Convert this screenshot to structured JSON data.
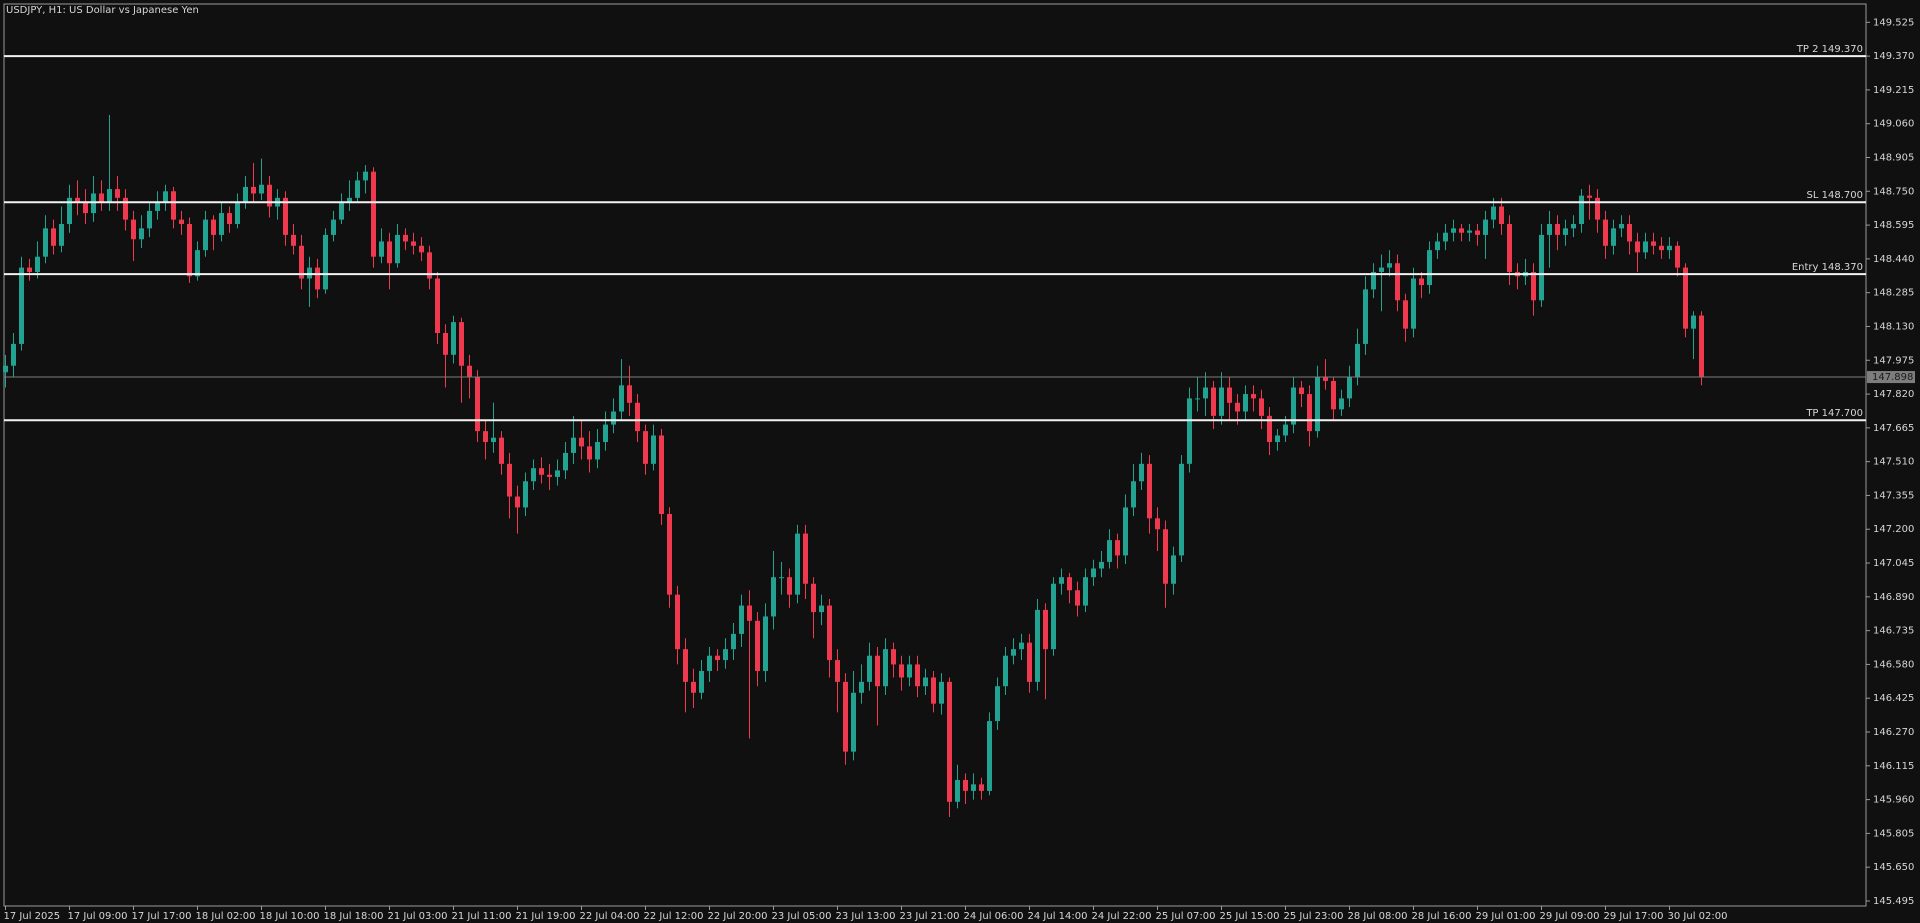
{
  "chart_data": {
    "type": "candlestick",
    "title": "USDJPY, H1:  US Dollar vs Japanese Yen",
    "up_color": "#22a391",
    "down_color": "#f0394f",
    "level_color": "#f2f2f2",
    "current_color": "#7d7d7d",
    "ylim": [
      145.472,
      149.609
    ],
    "yticks": [
      149.525,
      {
        "value": 149.37,
        "label": "149.370"
      },
      149.215,
      {
        "value": 149.06,
        "label": "149.060"
      },
      148.905,
      {
        "value": 148.75,
        "label": "148.750"
      },
      148.595,
      {
        "value": 148.44,
        "label": "148.440"
      },
      148.285,
      {
        "value": 148.13,
        "label": "148.130"
      },
      147.975,
      {
        "value": 147.82,
        "label": "147.820"
      },
      147.665,
      {
        "value": 147.51,
        "label": "147.510"
      },
      147.355,
      {
        "value": 147.2,
        "label": "147.200"
      },
      147.045,
      {
        "value": 146.89,
        "label": "146.890"
      },
      146.735,
      {
        "value": 146.58,
        "label": "146.580"
      },
      146.425,
      {
        "value": 146.27,
        "label": "146.270"
      },
      146.115,
      {
        "value": 145.96,
        "label": "145.960"
      },
      145.805,
      {
        "value": 145.65,
        "label": "145.650"
      },
      145.495
    ],
    "categories": [
      "17 Jul 2025",
      null,
      null,
      null,
      null,
      null,
      null,
      null,
      "17 Jul 09:00",
      null,
      null,
      null,
      null,
      null,
      null,
      null,
      "17 Jul 17:00",
      null,
      null,
      null,
      null,
      null,
      null,
      null,
      "18 Jul 02:00",
      null,
      null,
      null,
      null,
      null,
      null,
      null,
      "18 Jul 10:00",
      null,
      null,
      null,
      null,
      null,
      null,
      null,
      "18 Jul 18:00",
      null,
      null,
      null,
      null,
      null,
      null,
      null,
      "21 Jul 03:00",
      null,
      null,
      null,
      null,
      null,
      null,
      null,
      "21 Jul 11:00",
      null,
      null,
      null,
      null,
      null,
      null,
      null,
      "21 Jul 19:00",
      null,
      null,
      null,
      null,
      null,
      null,
      null,
      "22 Jul 04:00",
      null,
      null,
      null,
      null,
      null,
      null,
      null,
      "22 Jul 12:00",
      null,
      null,
      null,
      null,
      null,
      null,
      null,
      "22 Jul 20:00",
      null,
      null,
      null,
      null,
      null,
      null,
      null,
      "23 Jul 05:00",
      null,
      null,
      null,
      null,
      null,
      null,
      null,
      "23 Jul 13:00",
      null,
      null,
      null,
      null,
      null,
      null,
      null,
      "23 Jul 21:00",
      null,
      null,
      null,
      null,
      null,
      null,
      null,
      "24 Jul 06:00",
      null,
      null,
      null,
      null,
      null,
      null,
      null,
      "24 Jul 14:00",
      null,
      null,
      null,
      null,
      null,
      null,
      null,
      "24 Jul 22:00",
      null,
      null,
      null,
      null,
      null,
      null,
      null,
      "25 Jul 07:00",
      null,
      null,
      null,
      null,
      null,
      null,
      null,
      "25 Jul 15:00",
      null,
      null,
      null,
      null,
      null,
      null,
      null,
      "25 Jul 23:00",
      null,
      null,
      null,
      null,
      null,
      null,
      null,
      "28 Jul 08:00",
      null,
      null,
      null,
      null,
      null,
      null,
      null,
      "28 Jul 16:00",
      null,
      null,
      null,
      null,
      null,
      null,
      null,
      "29 Jul 01:00",
      null,
      null,
      null,
      null,
      null,
      null,
      null,
      "29 Jul 09:00",
      null,
      null,
      null,
      null,
      null,
      null,
      null,
      "29 Jul 17:00",
      null,
      null,
      null,
      null,
      null,
      null,
      null,
      "30 Jul 02:00",
      null,
      null,
      null,
      null
    ],
    "open": [
      147.92,
      147.95,
      148.05,
      148.4,
      148.38,
      148.45,
      148.58,
      148.5,
      148.6,
      148.72,
      148.7,
      148.65,
      148.74,
      148.7,
      148.76,
      148.72,
      148.62,
      148.53,
      148.58,
      148.66,
      148.7,
      148.75,
      148.62,
      148.6,
      148.36,
      148.48,
      148.62,
      148.55,
      148.65,
      148.6,
      148.7,
      148.77,
      148.74,
      148.78,
      148.68,
      148.72,
      148.55,
      148.5,
      148.35,
      148.4,
      148.3,
      148.55,
      148.62,
      148.7,
      148.72,
      148.8,
      148.84,
      148.45,
      148.52,
      148.42,
      148.55,
      148.52,
      148.5,
      148.47,
      148.35,
      148.1,
      148.0,
      148.15,
      147.95,
      147.9,
      147.65,
      147.6,
      147.62,
      147.5,
      147.35,
      147.3,
      147.42,
      147.48,
      147.45,
      147.44,
      147.47,
      147.55,
      147.62,
      147.58,
      147.52,
      147.6,
      147.68,
      147.74,
      147.86,
      147.78,
      147.65,
      147.5,
      147.63,
      147.27,
      146.9,
      146.65,
      146.5,
      146.45,
      146.55,
      146.62,
      146.6,
      146.65,
      146.72,
      146.85,
      146.78,
      146.55,
      146.8,
      146.98,
      146.98,
      146.9,
      147.18,
      146.95,
      146.82,
      146.85,
      146.6,
      146.5,
      146.18,
      146.45,
      146.5,
      146.62,
      146.48,
      146.65,
      146.58,
      146.52,
      146.58,
      146.48,
      146.52,
      146.4,
      146.5,
      145.95,
      146.05,
      146.0,
      146.03,
      146.0,
      146.32,
      146.48,
      146.62,
      146.65,
      146.68,
      146.5,
      146.83,
      146.65,
      146.95,
      146.98,
      146.92,
      146.85,
      146.98,
      147.02,
      147.05,
      147.15,
      147.08,
      147.3,
      147.42,
      147.5,
      147.25,
      147.2,
      146.95,
      147.08,
      147.5,
      147.8,
      147.8,
      147.85,
      147.72,
      147.85,
      147.78,
      147.74,
      147.82,
      147.8,
      147.72,
      147.6,
      147.63,
      147.68,
      147.85,
      147.82,
      147.65,
      147.9,
      147.88,
      147.75,
      147.8,
      147.9,
      148.05,
      148.3,
      148.38,
      148.4,
      148.42,
      148.25,
      148.12,
      148.35,
      148.32,
      148.48,
      148.52,
      148.56,
      148.58,
      148.56,
      148.57,
      148.55,
      148.62,
      148.68,
      148.6,
      148.38,
      148.36,
      148.38,
      148.25,
      148.55,
      148.6,
      148.55,
      148.58,
      148.6,
      148.73,
      148.72,
      148.62,
      148.5,
      148.58,
      148.6,
      148.52,
      148.47,
      148.52,
      148.5,
      148.48,
      148.5,
      148.4,
      148.12,
      148.18
    ],
    "high": [
      148.0,
      148.1,
      148.45,
      148.44,
      148.52,
      148.64,
      148.62,
      148.68,
      148.78,
      148.8,
      148.76,
      148.82,
      148.8,
      149.1,
      148.82,
      148.76,
      148.66,
      148.64,
      148.7,
      148.75,
      148.78,
      148.77,
      148.66,
      148.63,
      148.52,
      148.66,
      148.64,
      148.7,
      148.68,
      148.74,
      148.82,
      148.88,
      148.9,
      148.82,
      148.76,
      148.75,
      148.6,
      148.55,
      148.45,
      148.44,
      148.58,
      148.66,
      148.74,
      148.8,
      148.84,
      148.87,
      148.86,
      148.58,
      148.56,
      148.6,
      148.58,
      148.56,
      148.54,
      148.5,
      148.38,
      148.14,
      148.18,
      148.17,
      148.0,
      147.93,
      147.7,
      147.78,
      147.65,
      147.55,
      147.4,
      147.46,
      147.52,
      147.53,
      147.5,
      147.52,
      147.6,
      147.72,
      147.7,
      147.65,
      147.66,
      147.74,
      147.8,
      147.98,
      147.95,
      147.82,
      147.68,
      147.68,
      147.66,
      147.3,
      146.94,
      146.7,
      146.56,
      146.6,
      146.66,
      146.65,
      146.7,
      146.77,
      146.9,
      146.92,
      146.82,
      146.86,
      147.1,
      147.05,
      147.02,
      147.22,
      147.22,
      146.98,
      146.9,
      146.88,
      146.65,
      146.54,
      146.55,
      146.58,
      146.68,
      146.66,
      146.7,
      146.68,
      146.62,
      146.62,
      146.62,
      146.56,
      146.55,
      146.54,
      146.52,
      146.12,
      146.08,
      146.08,
      146.06,
      146.36,
      146.52,
      146.66,
      146.7,
      146.72,
      146.72,
      146.88,
      146.86,
      146.98,
      147.02,
      147.0,
      146.96,
      147.02,
      147.06,
      147.1,
      147.2,
      147.18,
      147.36,
      147.5,
      147.55,
      147.54,
      147.3,
      147.24,
      147.12,
      147.54,
      147.85,
      147.9,
      147.92,
      147.88,
      147.92,
      147.9,
      147.82,
      147.86,
      147.86,
      147.84,
      147.76,
      147.66,
      147.72,
      147.9,
      147.88,
      147.86,
      147.95,
      147.98,
      147.9,
      147.84,
      147.95,
      148.12,
      148.36,
      148.42,
      148.46,
      148.48,
      148.46,
      148.28,
      148.4,
      148.38,
      148.52,
      148.56,
      148.6,
      148.62,
      148.6,
      148.6,
      148.6,
      148.66,
      148.72,
      148.72,
      148.64,
      148.42,
      148.44,
      148.42,
      148.6,
      148.66,
      148.64,
      148.62,
      148.64,
      148.76,
      148.78,
      148.76,
      148.66,
      148.62,
      148.64,
      148.64,
      148.56,
      148.56,
      148.56,
      148.54,
      148.54,
      148.52,
      148.42,
      148.2,
      148.2
    ],
    "low": [
      147.85,
      147.9,
      148.02,
      148.34,
      148.35,
      148.42,
      148.46,
      148.47,
      148.56,
      148.64,
      148.6,
      148.61,
      148.66,
      148.66,
      148.66,
      148.57,
      148.43,
      148.49,
      148.54,
      148.62,
      148.66,
      148.58,
      148.55,
      148.33,
      148.34,
      148.45,
      148.48,
      148.52,
      148.56,
      148.58,
      148.67,
      148.7,
      148.71,
      148.63,
      148.62,
      148.5,
      148.46,
      148.3,
      148.22,
      148.26,
      148.28,
      148.52,
      148.6,
      148.66,
      148.7,
      148.74,
      148.4,
      148.42,
      148.3,
      148.4,
      148.48,
      148.46,
      148.43,
      148.3,
      148.05,
      147.85,
      147.96,
      147.78,
      147.8,
      147.6,
      147.52,
      147.55,
      147.45,
      147.25,
      147.18,
      147.26,
      147.38,
      147.41,
      147.38,
      147.4,
      147.43,
      147.5,
      147.52,
      147.46,
      147.48,
      147.56,
      147.64,
      147.7,
      147.72,
      147.6,
      147.45,
      147.47,
      147.22,
      146.84,
      146.58,
      146.36,
      146.38,
      146.42,
      146.5,
      146.55,
      146.56,
      146.6,
      146.66,
      146.24,
      146.48,
      146.5,
      146.74,
      146.9,
      146.84,
      146.86,
      146.88,
      146.7,
      146.76,
      146.52,
      146.36,
      146.12,
      146.14,
      146.4,
      146.46,
      146.3,
      146.44,
      146.52,
      146.46,
      146.48,
      146.43,
      146.44,
      146.36,
      146.35,
      145.88,
      145.92,
      145.94,
      145.96,
      145.96,
      145.98,
      146.28,
      146.44,
      146.58,
      146.6,
      146.45,
      146.46,
      146.42,
      146.62,
      146.9,
      146.86,
      146.8,
      146.82,
      146.94,
      146.98,
      147.02,
      147.02,
      147.04,
      147.26,
      147.38,
      147.18,
      147.1,
      146.84,
      146.9,
      147.05,
      147.46,
      147.74,
      147.72,
      147.66,
      147.68,
      147.7,
      147.68,
      147.7,
      147.74,
      147.66,
      147.54,
      147.56,
      147.6,
      147.64,
      147.76,
      147.58,
      147.62,
      147.84,
      147.7,
      147.72,
      147.76,
      147.86,
      148.0,
      148.26,
      148.2,
      148.36,
      148.2,
      148.06,
      148.08,
      148.26,
      148.28,
      148.44,
      148.48,
      148.52,
      148.52,
      148.52,
      148.5,
      148.44,
      148.58,
      148.55,
      148.32,
      148.3,
      148.32,
      148.18,
      148.22,
      148.4,
      148.48,
      148.5,
      148.54,
      148.56,
      148.62,
      148.56,
      148.44,
      148.46,
      148.54,
      148.46,
      148.38,
      148.44,
      148.46,
      148.44,
      148.44,
      148.36,
      148.08,
      147.98,
      147.86
    ],
    "close": [
      147.95,
      148.05,
      148.4,
      148.38,
      148.45,
      148.58,
      148.5,
      148.6,
      148.72,
      148.7,
      148.65,
      148.74,
      148.7,
      148.76,
      148.72,
      148.62,
      148.53,
      148.58,
      148.66,
      148.7,
      148.75,
      148.62,
      148.6,
      148.36,
      148.48,
      148.62,
      148.55,
      148.65,
      148.6,
      148.7,
      148.77,
      148.74,
      148.78,
      148.68,
      148.72,
      148.55,
      148.5,
      148.35,
      148.4,
      148.3,
      148.55,
      148.62,
      148.7,
      148.72,
      148.8,
      148.84,
      148.45,
      148.52,
      148.42,
      148.55,
      148.52,
      148.5,
      148.47,
      148.35,
      148.1,
      148.0,
      148.15,
      147.95,
      147.9,
      147.65,
      147.6,
      147.62,
      147.5,
      147.35,
      147.3,
      147.42,
      147.48,
      147.45,
      147.44,
      147.47,
      147.55,
      147.62,
      147.58,
      147.52,
      147.6,
      147.68,
      147.74,
      147.86,
      147.78,
      147.65,
      147.5,
      147.63,
      147.27,
      146.9,
      146.65,
      146.5,
      146.45,
      146.55,
      146.62,
      146.6,
      146.65,
      146.72,
      146.85,
      146.78,
      146.55,
      146.8,
      146.98,
      146.98,
      146.9,
      147.18,
      146.95,
      146.82,
      146.85,
      146.6,
      146.5,
      146.18,
      146.45,
      146.5,
      146.62,
      146.48,
      146.65,
      146.58,
      146.52,
      146.58,
      146.48,
      146.52,
      146.4,
      146.5,
      145.95,
      146.05,
      146.0,
      146.03,
      146.0,
      146.32,
      146.48,
      146.62,
      146.65,
      146.68,
      146.5,
      146.83,
      146.65,
      146.95,
      146.98,
      146.92,
      146.85,
      146.98,
      147.02,
      147.05,
      147.15,
      147.08,
      147.3,
      147.42,
      147.5,
      147.25,
      147.2,
      146.95,
      147.08,
      147.5,
      147.8,
      147.8,
      147.85,
      147.72,
      147.85,
      147.78,
      147.74,
      147.82,
      147.8,
      147.72,
      147.6,
      147.63,
      147.68,
      147.85,
      147.82,
      147.65,
      147.9,
      147.88,
      147.75,
      147.8,
      147.9,
      148.05,
      148.3,
      148.38,
      148.4,
      148.42,
      148.25,
      148.12,
      148.35,
      148.32,
      148.48,
      148.52,
      148.56,
      148.58,
      148.56,
      148.57,
      148.55,
      148.62,
      148.68,
      148.6,
      148.38,
      148.36,
      148.38,
      148.25,
      148.55,
      148.6,
      148.55,
      148.58,
      148.6,
      148.73,
      148.72,
      148.62,
      148.5,
      148.58,
      148.6,
      148.52,
      148.47,
      148.52,
      148.5,
      148.48,
      148.5,
      148.4,
      148.12,
      148.18,
      147.898
    ],
    "levels": [
      {
        "label": "TP 2 149.370",
        "value": 149.37
      },
      {
        "label": "SL 148.700",
        "value": 148.7
      },
      {
        "label": "Entry 148.370",
        "value": 148.37
      },
      {
        "label": "TP 147.700",
        "value": 147.7
      }
    ],
    "current_price": 147.898
  }
}
